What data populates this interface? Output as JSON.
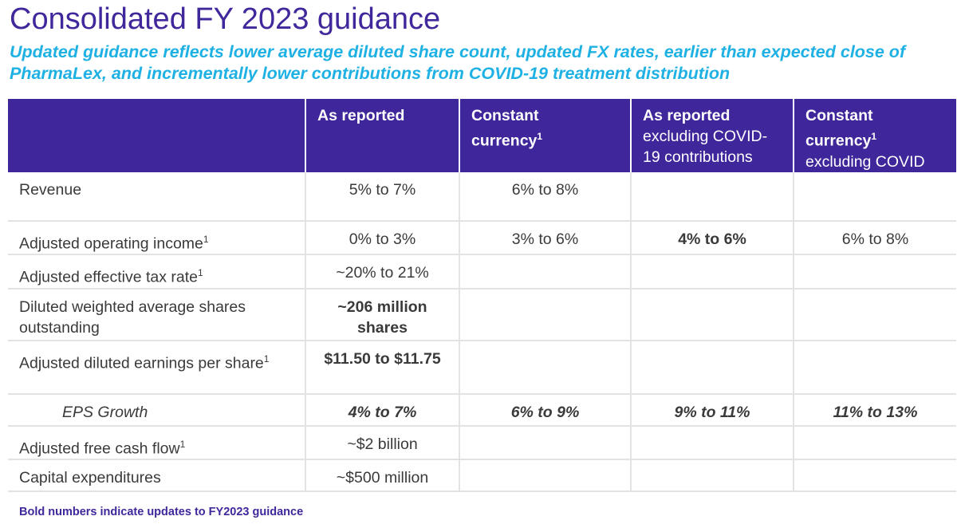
{
  "title": "Consolidated FY 2023 guidance",
  "subtitle": "Updated guidance reflects lower average diluted share count, updated FX rates, earlier than expected close of PharmaLex, and incrementally lower contributions from COVID-19 treatment distribution",
  "colors": {
    "header_bg": "#40269b",
    "title": "#40279b",
    "subtitle": "#1fb1e4",
    "row_border": "#e3e3e3"
  },
  "table": {
    "headers": [
      {
        "line1": "",
        "line2": ""
      },
      {
        "line1": "As reported",
        "line2": ""
      },
      {
        "line1": "Constant",
        "line1b": "currency",
        "sup": "1",
        "line2": ""
      },
      {
        "line1": "As reported",
        "line2": "excluding COVID-19 contributions"
      },
      {
        "line1": "Constant",
        "line1b": "currency",
        "sup": "1",
        "line2": "excluding COVID"
      }
    ],
    "rows": [
      {
        "label": "Revenue",
        "sup": "",
        "values": [
          "5% to 7%",
          "6% to 8%",
          "",
          ""
        ]
      },
      {
        "label": "Adjusted operating income",
        "sup": "1",
        "values": [
          "0% to 3%",
          "3% to 6%",
          "4% to 6%",
          "6% to 8%"
        ]
      },
      {
        "label": "Adjusted effective tax rate",
        "sup": "1",
        "values": [
          "~20% to 21%",
          "",
          "",
          ""
        ]
      },
      {
        "label": "Diluted weighted average shares outstanding",
        "sup": "",
        "values": [
          "~206 million shares",
          "",
          "",
          ""
        ]
      },
      {
        "label": "Adjusted diluted earnings per share",
        "sup": "1",
        "values": [
          "$11.50 to $11.75",
          "",
          "",
          ""
        ]
      },
      {
        "label": "EPS Growth",
        "sup": "",
        "values": [
          "4% to 7%",
          "6% to 9%",
          "9% to 11%",
          "11% to 13%"
        ]
      },
      {
        "label": "Adjusted free cash flow",
        "sup": "1",
        "values": [
          "~$2 billion",
          "",
          "",
          ""
        ]
      },
      {
        "label": "Capital expenditures",
        "sup": "",
        "values": [
          "~$500 million",
          "",
          "",
          ""
        ]
      }
    ]
  },
  "footnote": "Bold numbers indicate updates to FY2023 guidance"
}
